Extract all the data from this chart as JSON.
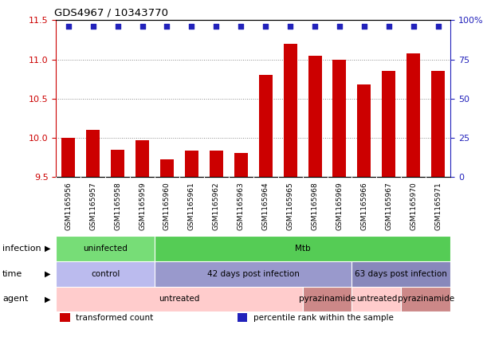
{
  "title": "GDS4967 / 10343770",
  "samples": [
    "GSM1165956",
    "GSM1165957",
    "GSM1165958",
    "GSM1165959",
    "GSM1165960",
    "GSM1165961",
    "GSM1165962",
    "GSM1165963",
    "GSM1165964",
    "GSM1165965",
    "GSM1165968",
    "GSM1165969",
    "GSM1165966",
    "GSM1165967",
    "GSM1165970",
    "GSM1165971"
  ],
  "bar_values": [
    10.0,
    10.1,
    9.85,
    9.97,
    9.72,
    9.84,
    9.84,
    9.81,
    10.8,
    11.2,
    11.05,
    11.0,
    10.68,
    10.85,
    11.08,
    10.85
  ],
  "ylim_left": [
    9.5,
    11.5
  ],
  "ylim_right": [
    0,
    100
  ],
  "yticks_left": [
    9.5,
    10.0,
    10.5,
    11.0,
    11.5
  ],
  "yticks_right": [
    0,
    25,
    50,
    75,
    100
  ],
  "bar_color": "#cc0000",
  "dot_color": "#2222bb",
  "infection_row": {
    "label": "infection",
    "segments": [
      {
        "text": "uninfected",
        "start": 0,
        "end": 4,
        "color": "#77dd77"
      },
      {
        "text": "Mtb",
        "start": 4,
        "end": 16,
        "color": "#55cc55"
      }
    ]
  },
  "time_row": {
    "label": "time",
    "segments": [
      {
        "text": "control",
        "start": 0,
        "end": 4,
        "color": "#bbbbee"
      },
      {
        "text": "42 days post infection",
        "start": 4,
        "end": 12,
        "color": "#9999cc"
      },
      {
        "text": "63 days post infection",
        "start": 12,
        "end": 16,
        "color": "#8888bb"
      }
    ]
  },
  "agent_row": {
    "label": "agent",
    "segments": [
      {
        "text": "untreated",
        "start": 0,
        "end": 10,
        "color": "#ffcccc"
      },
      {
        "text": "pyrazinamide",
        "start": 10,
        "end": 12,
        "color": "#cc8888"
      },
      {
        "text": "untreated",
        "start": 12,
        "end": 14,
        "color": "#ffcccc"
      },
      {
        "text": "pyrazinamide",
        "start": 14,
        "end": 16,
        "color": "#cc8888"
      }
    ]
  },
  "legend_items": [
    {
      "color": "#cc0000",
      "label": "transformed count"
    },
    {
      "color": "#2222bb",
      "label": "percentile rank within the sample"
    }
  ],
  "xtick_bg": "#dddddd",
  "grid_color": "#888888"
}
